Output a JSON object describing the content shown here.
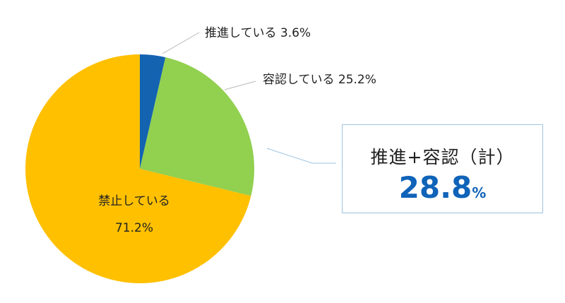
{
  "chart_data": {
    "type": "pie",
    "slices": [
      {
        "label": "推進している",
        "value": 3.6,
        "value_label": "3.6%",
        "color": "#1363b1"
      },
      {
        "label": "容認している",
        "value": 25.2,
        "value_label": "25.2%",
        "color": "#92d050"
      },
      {
        "label": "禁止している",
        "value": 71.2,
        "value_label": "71.2%",
        "color": "#ffc000"
      }
    ],
    "start_angle_deg": 0,
    "direction": "clockwise"
  },
  "callout": {
    "title": "推進+容認（計）",
    "value": "28.8",
    "unit": "%"
  }
}
